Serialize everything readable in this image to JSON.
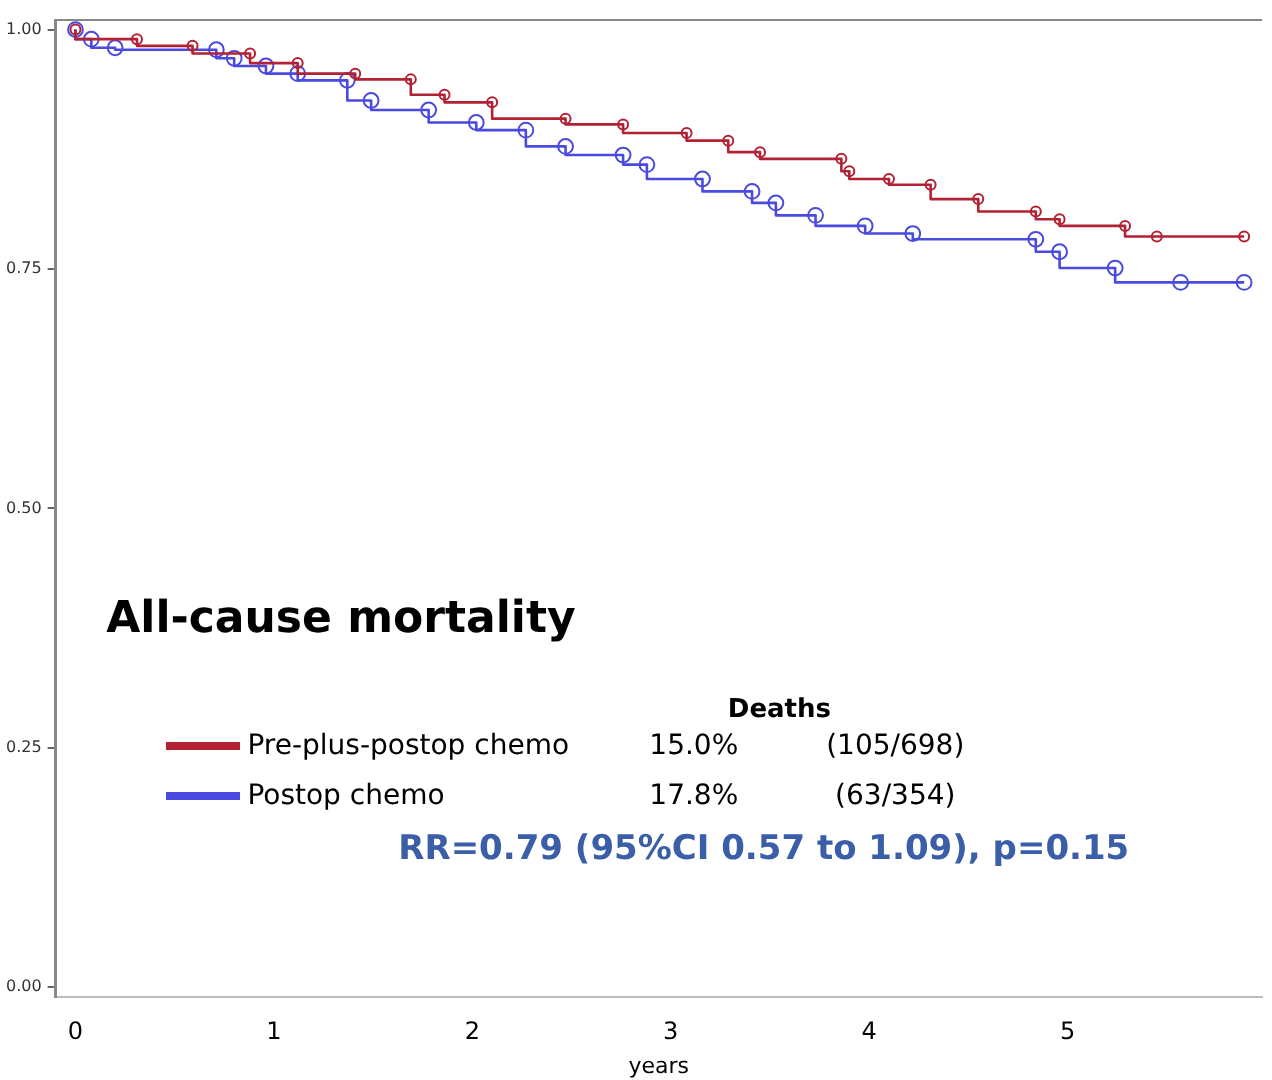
{
  "chart_data": {
    "type": "step",
    "title": "All-cause mortality",
    "xlabel": "years",
    "xlim": [
      -0.1,
      5.98
    ],
    "ylim": [
      -0.01,
      1.01
    ],
    "xticks": [
      0,
      1,
      2,
      3,
      4,
      5
    ],
    "yticks": [
      {
        "value": 0,
        "label": "0.00"
      },
      {
        "value": 0.25,
        "label": "0.25"
      },
      {
        "value": 0.5,
        "label": "0.50"
      },
      {
        "value": 0.75,
        "label": "0.75"
      },
      {
        "value": 1,
        "label": "1.00"
      }
    ],
    "grid": false,
    "legend": "bottom left",
    "marker": "circle",
    "line_style": "solid",
    "legend_title": "Deaths",
    "annotations": [
      "15.0%",
      "(105/698)",
      "17.8%",
      "(63/354)",
      "RR=0.79 (95%CI 0.57 to 1.09), p=0.15"
    ],
    "series": [
      {
        "name": "Pre-plus-postop chemo",
        "color": "#b22234",
        "x": [
          0,
          0.31,
          0.59,
          0.88,
          1.12,
          1.41,
          1.69,
          1.86,
          2.1,
          2.47,
          2.76,
          3.08,
          3.29,
          3.45,
          3.86,
          3.9,
          4.1,
          4.31,
          4.55,
          4.84,
          4.96,
          5.29,
          5.45,
          5.89
        ],
        "values": [
          1,
          0.99,
          0.983,
          0.975,
          0.965,
          0.954,
          0.948,
          0.932,
          0.924,
          0.907,
          0.901,
          0.892,
          0.884,
          0.872,
          0.865,
          0.852,
          0.844,
          0.838,
          0.823,
          0.81,
          0.802,
          0.795,
          0.784,
          0.784
        ]
      },
      {
        "name": "Postop chemo",
        "color": "#4a4ae0",
        "x": [
          0,
          0.08,
          0.2,
          0.71,
          0.8,
          0.96,
          1.12,
          1.37,
          1.49,
          1.78,
          2.02,
          2.27,
          2.47,
          2.76,
          2.88,
          3.16,
          3.41,
          3.53,
          3.73,
          3.98,
          4.22,
          4.84,
          4.96,
          5.24,
          5.57,
          5.89
        ],
        "values": [
          1,
          0.99,
          0.981,
          0.979,
          0.97,
          0.962,
          0.954,
          0.947,
          0.926,
          0.916,
          0.903,
          0.895,
          0.878,
          0.869,
          0.859,
          0.844,
          0.831,
          0.819,
          0.806,
          0.795,
          0.787,
          0.781,
          0.768,
          0.751,
          0.736,
          0.736
        ]
      }
    ]
  }
}
